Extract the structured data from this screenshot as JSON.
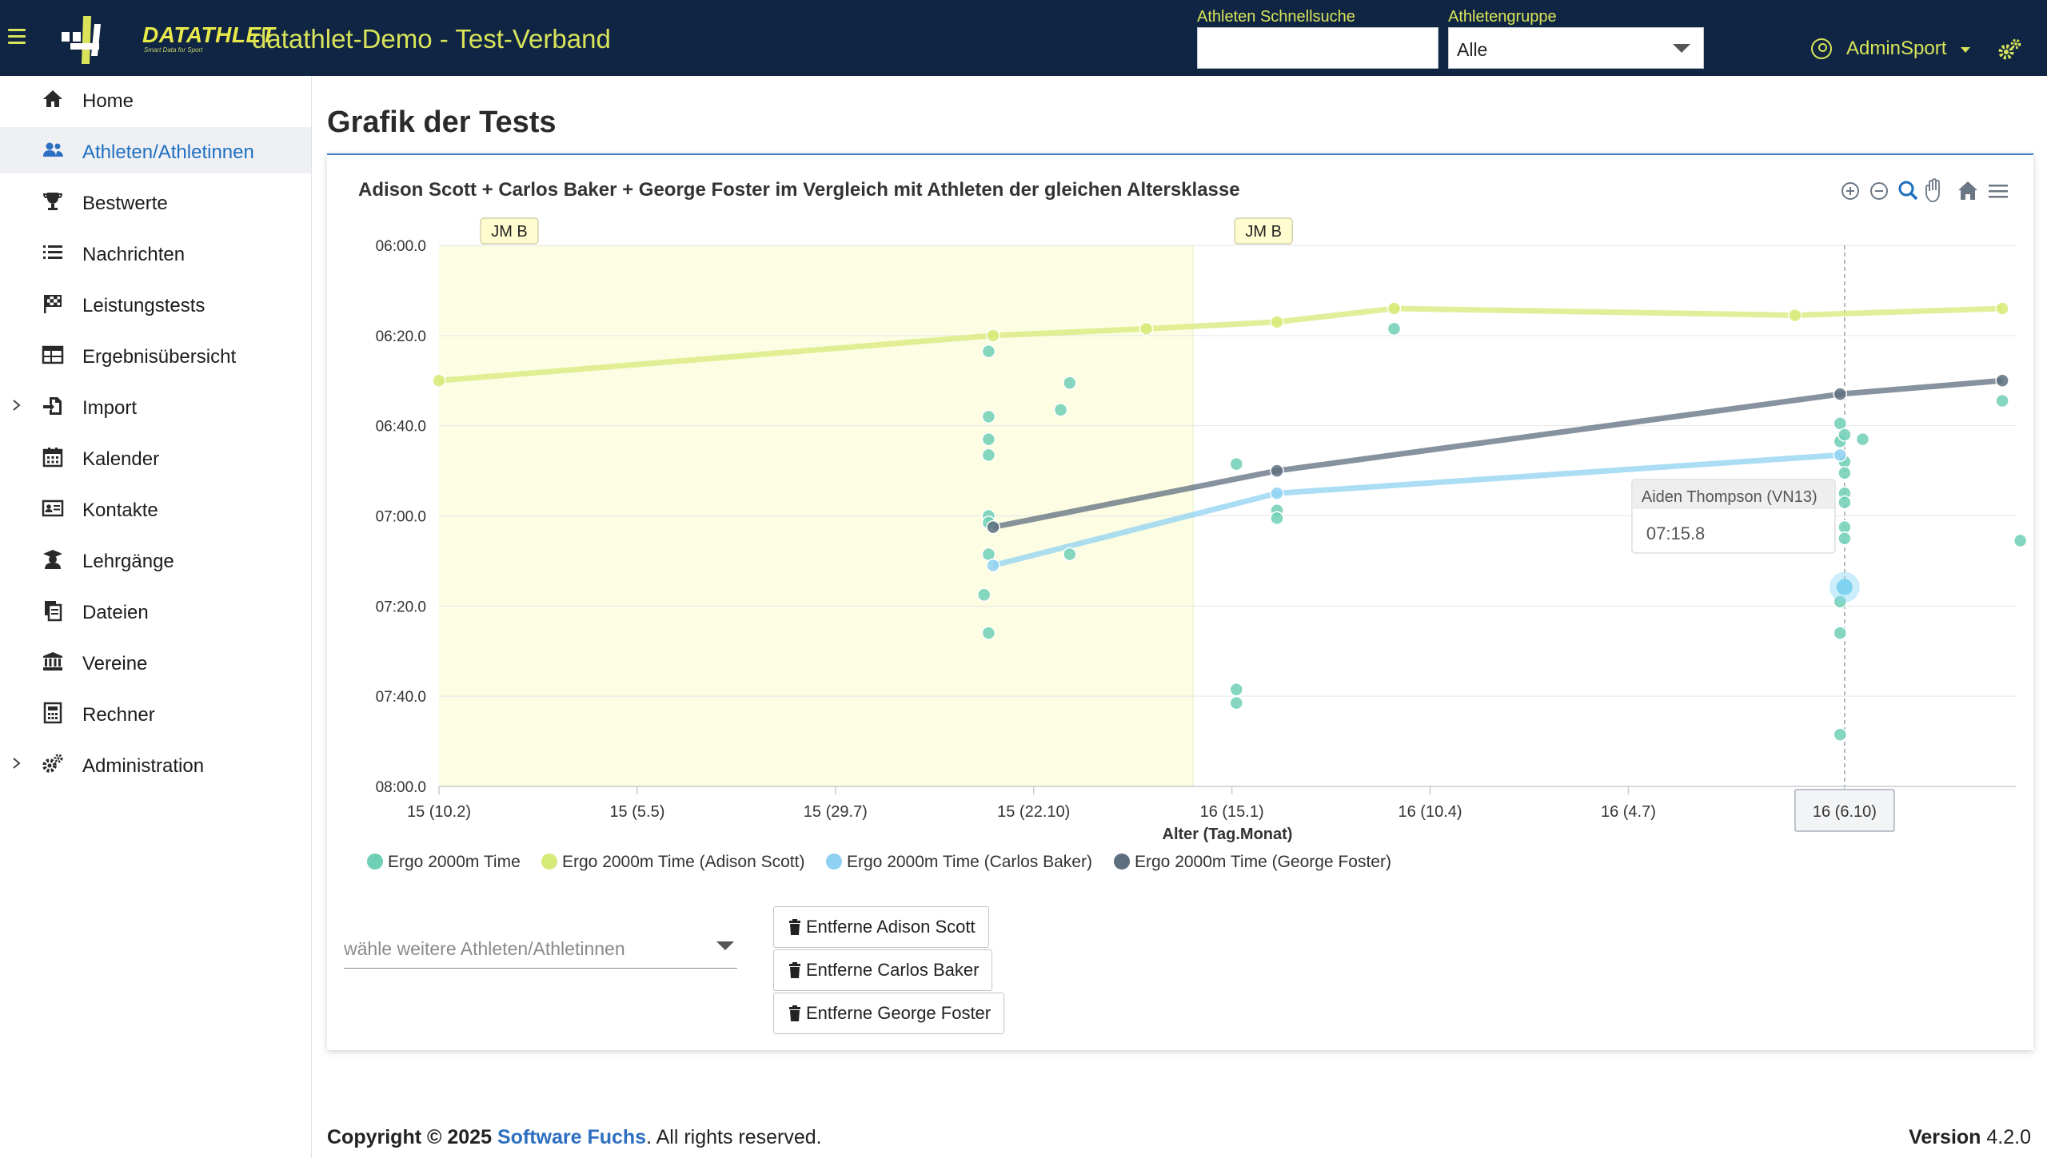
{
  "header": {
    "app_title": "datathlet-Demo - Test-Verband",
    "logo_text": "DATATHLET",
    "logo_sub": "Smart Data for Sport",
    "quick_search_label": "Athleten Schnellsuche",
    "quick_search_value": "",
    "group_label": "Athletengruppe",
    "group_value": "Alle",
    "user_name": "AdminSport",
    "accent": "#d9e45a",
    "bar_color": "#0f2543"
  },
  "sidebar": {
    "items": [
      {
        "label": "Home",
        "icon": "home-icon"
      },
      {
        "label": "Athleten/Athletinnen",
        "icon": "users-icon",
        "active": true
      },
      {
        "label": "Bestwerte",
        "icon": "trophy-icon"
      },
      {
        "label": "Nachrichten",
        "icon": "list-icon"
      },
      {
        "label": "Leistungstests",
        "icon": "flag-checkered-icon"
      },
      {
        "label": "Ergebnisübersicht",
        "icon": "table-icon"
      },
      {
        "label": "Import",
        "icon": "file-import-icon",
        "expandable": true
      },
      {
        "label": "Kalender",
        "icon": "calendar-icon"
      },
      {
        "label": "Kontakte",
        "icon": "address-card-icon"
      },
      {
        "label": "Lehrgänge",
        "icon": "graduation-icon"
      },
      {
        "label": "Dateien",
        "icon": "files-icon"
      },
      {
        "label": "Vereine",
        "icon": "institution-icon"
      },
      {
        "label": "Rechner",
        "icon": "calculator-icon"
      },
      {
        "label": "Administration",
        "icon": "cogs-icon",
        "expandable": true
      }
    ]
  },
  "main": {
    "page_title": "Grafik der Tests",
    "athlete_select_placeholder": "wähle weitere Athleten/Athletinnen",
    "remove_buttons": [
      "Entferne Adison Scott",
      "Entferne Carlos Baker",
      "Entferne George Foster"
    ]
  },
  "chart_data": {
    "type": "scatter",
    "title": "Adison Scott + Carlos Baker + George Foster im Vergleich mit Athleten der gleichen Altersklasse",
    "xlabel": "Alter (Tag.Monat)",
    "x_unit": "age in years",
    "xlim": [
      15.1,
      16.85
    ],
    "x_ticks": [
      {
        "x": 15.1,
        "label": "15 (10.2)"
      },
      {
        "x": 15.32,
        "label": "15 (5.5)"
      },
      {
        "x": 15.54,
        "label": "15 (29.7)"
      },
      {
        "x": 15.76,
        "label": "15 (22.10)"
      },
      {
        "x": 15.98,
        "label": "16 (15.1)"
      },
      {
        "x": 16.2,
        "label": "16 (10.4)"
      },
      {
        "x": 16.42,
        "label": "16 (4.7)"
      },
      {
        "x": 16.66,
        "label": "16 (6.10)"
      }
    ],
    "y_unit": "seconds (inverted axis)",
    "ylim": [
      360,
      480
    ],
    "y_ticks": [
      {
        "y": 360,
        "label": "06:00.0"
      },
      {
        "y": 380,
        "label": "06:20.0"
      },
      {
        "y": 400,
        "label": "06:40.0"
      },
      {
        "y": 420,
        "label": "07:00.0"
      },
      {
        "y": 440,
        "label": "07:20.0"
      },
      {
        "y": 460,
        "label": "07:40.0"
      },
      {
        "y": 480,
        "label": "08:00.0"
      }
    ],
    "bands": [
      {
        "from": 15.1,
        "to": 15.937,
        "label": "JM B",
        "color": "#fdfde3"
      },
      {
        "from": 15.937,
        "to": 16.85,
        "label": "JM B",
        "color": "#ffffff"
      }
    ],
    "crosshair_x": 16.66,
    "crosshair_label": "16 (6.10)",
    "tooltip": {
      "name": "Aiden Thompson (VN13)",
      "value": "07:15.8",
      "x": 16.66,
      "y": 435.8
    },
    "series": [
      {
        "name": "Ergo 2000m Time",
        "color": "#6fcfb5",
        "line": false,
        "points": [
          [
            15.71,
            383.5
          ],
          [
            15.71,
            398
          ],
          [
            15.71,
            403
          ],
          [
            15.71,
            406.5
          ],
          [
            15.71,
            420
          ],
          [
            15.71,
            421.5
          ],
          [
            15.71,
            428.5
          ],
          [
            15.705,
            437.5
          ],
          [
            15.71,
            446
          ],
          [
            15.8,
            390.5
          ],
          [
            15.79,
            396.5
          ],
          [
            15.8,
            428.5
          ],
          [
            16.03,
            418.8
          ],
          [
            16.03,
            420.5
          ],
          [
            15.985,
            408.5
          ],
          [
            15.985,
            458.5
          ],
          [
            15.985,
            461.5
          ],
          [
            16.16,
            378.5
          ],
          [
            16.655,
            399.5
          ],
          [
            16.655,
            403.5
          ],
          [
            16.66,
            402
          ],
          [
            16.66,
            408
          ],
          [
            16.66,
            410.5
          ],
          [
            16.66,
            415
          ],
          [
            16.66,
            417
          ],
          [
            16.66,
            422.5
          ],
          [
            16.66,
            425
          ],
          [
            16.655,
            439
          ],
          [
            16.655,
            446
          ],
          [
            16.655,
            468.5
          ],
          [
            16.68,
            403
          ],
          [
            16.835,
            394.5
          ],
          [
            16.855,
            425.5
          ]
        ]
      },
      {
        "name": "Ergo 2000m Time (Adison Scott)",
        "color": "#d6ea78",
        "line": true,
        "points": [
          [
            15.1,
            390
          ],
          [
            15.715,
            380
          ],
          [
            15.885,
            378.5
          ],
          [
            16.03,
            377
          ],
          [
            16.16,
            374
          ],
          [
            16.605,
            375.5
          ],
          [
            16.835,
            374
          ]
        ]
      },
      {
        "name": "Ergo 2000m Time (Carlos Baker)",
        "color": "#8fd1f2",
        "line": true,
        "points": [
          [
            15.715,
            431
          ],
          [
            16.03,
            415
          ],
          [
            16.655,
            406.5
          ]
        ]
      },
      {
        "name": "Ergo 2000m Time (George Foster)",
        "color": "#5d6e7e",
        "line": true,
        "points": [
          [
            15.715,
            422.5
          ],
          [
            16.03,
            410
          ],
          [
            16.655,
            393
          ],
          [
            16.835,
            390
          ]
        ]
      }
    ],
    "legend": [
      {
        "label": "Ergo 2000m Time",
        "color": "#6fcfb5"
      },
      {
        "label": "Ergo 2000m Time (Adison Scott)",
        "color": "#d6ea78"
      },
      {
        "label": "Ergo 2000m Time (Carlos Baker)",
        "color": "#8fd1f2"
      },
      {
        "label": "Ergo 2000m Time (George Foster)",
        "color": "#5d6e7e"
      }
    ]
  },
  "footer": {
    "copyright_prefix": "Copyright © 2025",
    "company": "Software Fuchs",
    "rights": ". All rights reserved.",
    "version_label": "Version",
    "version_value": "4.2.0"
  }
}
